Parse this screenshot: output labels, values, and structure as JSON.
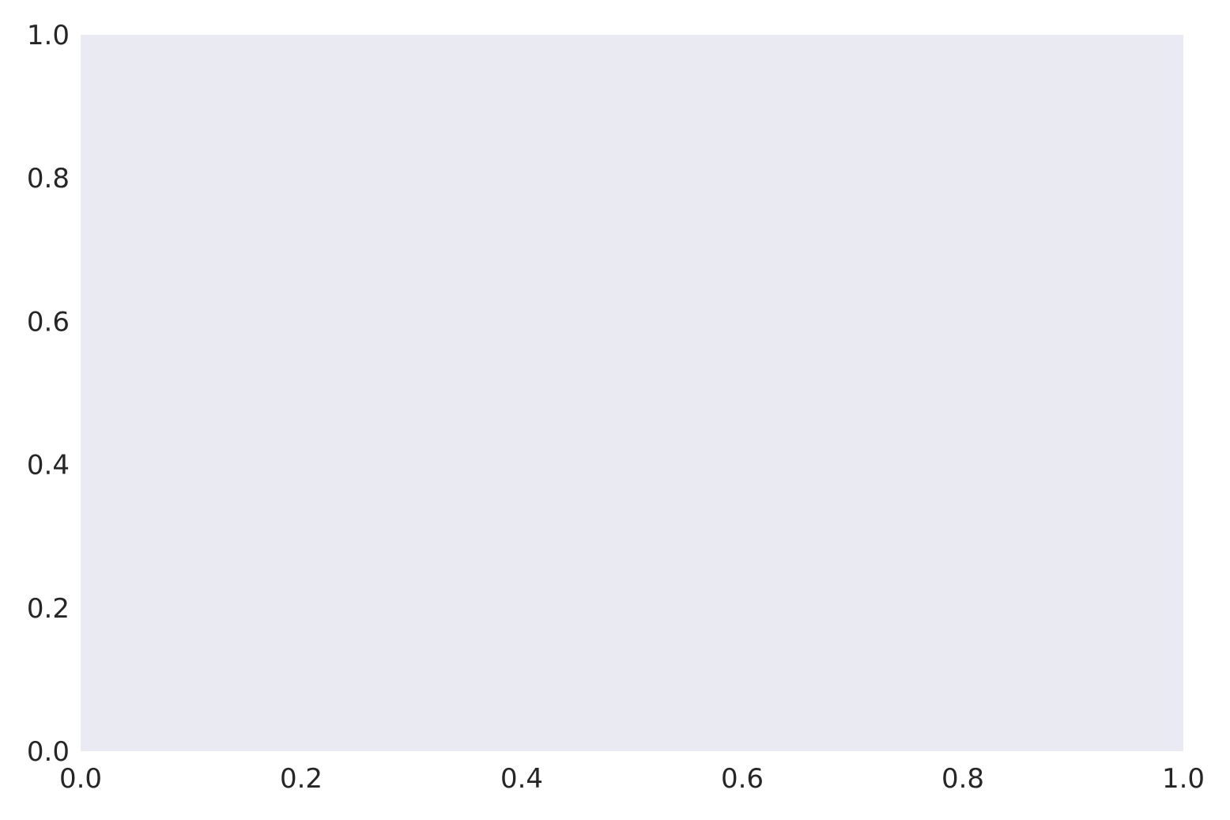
{
  "chart_data": {
    "type": "scatter",
    "title": "",
    "xlabel": "",
    "ylabel": "",
    "series": [],
    "xlim": [
      0.0,
      1.0
    ],
    "ylim": [
      0.0,
      1.0
    ],
    "xticks": [
      "0.0",
      "0.2",
      "0.4",
      "0.6",
      "0.8",
      "1.0"
    ],
    "yticks": [
      "0.0",
      "0.2",
      "0.4",
      "0.6",
      "0.8",
      "1.0"
    ],
    "grid": false,
    "legend": "none",
    "colors": {
      "plot_background": "#eaeaf2",
      "figure_background": "#ffffff",
      "tick_text": "#262626"
    }
  }
}
